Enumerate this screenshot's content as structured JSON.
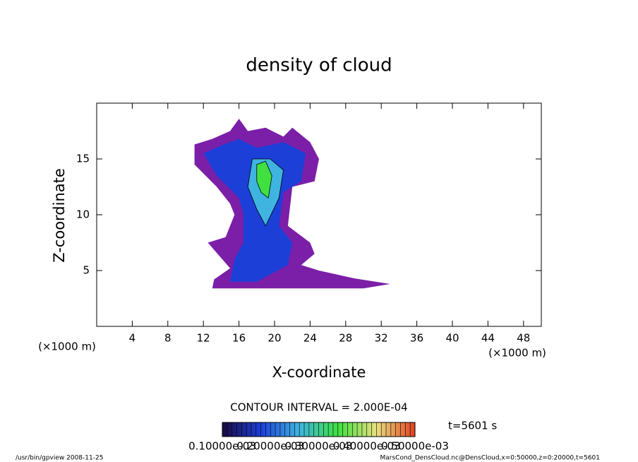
{
  "chart_data": {
    "type": "contour",
    "title": "density of cloud",
    "x_label": "X-coordinate",
    "y_label": "Z-coordinate",
    "x_unit": "(×1000 m)",
    "y_unit": "(×1000 m)",
    "xlim": [
      0,
      50
    ],
    "ylim": [
      0,
      20
    ],
    "xticks": [
      4,
      8,
      12,
      16,
      20,
      24,
      28,
      32,
      36,
      40,
      44,
      48
    ],
    "yticks": [
      5,
      10,
      15
    ],
    "contour_interval": "CONTOUR INTERVAL = 2.000E-04",
    "time_label": "t=5601 s",
    "regions": [
      {
        "level": 0.0001,
        "color": "#7b1fa8",
        "x": [
          11,
          13,
          15,
          16,
          17,
          19,
          21,
          22,
          24,
          25,
          24.5,
          22,
          21.5,
          24,
          24.5,
          23,
          25,
          29,
          33,
          30,
          13,
          13.2,
          15,
          12.5,
          14.5,
          15.5,
          15,
          13.5,
          11
        ],
        "z": [
          16.3,
          16.8,
          17.5,
          18.6,
          17.5,
          17.8,
          17,
          17.8,
          16.5,
          15,
          13,
          12.5,
          9,
          7.5,
          6.5,
          5.5,
          5,
          4.3,
          3.8,
          3.4,
          3.4,
          4.2,
          5.2,
          7.5,
          8,
          10,
          11,
          12.5,
          14.5
        ]
      },
      {
        "level": 0.0002,
        "color": "#1c3fd8",
        "x": [
          12,
          14,
          16,
          18,
          21,
          23.5,
          23,
          21,
          20.5,
          22,
          21.5,
          18,
          15,
          15.5,
          16.5,
          16.5,
          16,
          13.5
        ],
        "z": [
          15.5,
          16.2,
          16.8,
          16,
          16.5,
          15.5,
          13,
          12,
          9,
          7.5,
          5.5,
          4,
          4,
          6,
          7.5,
          10,
          11.5,
          13.5
        ]
      },
      {
        "level": 0.0003,
        "color": "#3fb4e0",
        "x": [
          17.5,
          19.5,
          21,
          20.5,
          19,
          18,
          17
        ],
        "z": [
          15,
          15,
          14,
          11.5,
          9,
          10.5,
          12.5
        ]
      },
      {
        "level": 0.0004,
        "color": "#40e040",
        "x": [
          18,
          19,
          19.7,
          19.3,
          18.5,
          18
        ],
        "z": [
          14.5,
          14.8,
          13.5,
          11.5,
          12,
          13
        ]
      }
    ],
    "colorbar": {
      "lim": [
        0.0001,
        0.0005
      ],
      "colormap": [
        "#1a0a40",
        "#1c3fd8",
        "#3fb4e0",
        "#40e040",
        "#e8e080",
        "#e04020"
      ],
      "ticks": [
        {
          "value": 0.0001,
          "label": "0.10000e-03"
        },
        {
          "value": 0.0002,
          "label": "0.20000e-03"
        },
        {
          "value": 0.0003,
          "label": "0.30000e-03"
        },
        {
          "value": 0.0004,
          "label": "0.40000e-03"
        },
        {
          "value": 0.0005,
          "label": "0.50000e-03"
        }
      ]
    },
    "footer_left": "/usr/bin/gpview  2008-11-25",
    "footer_right": "MarsCond_DensCloud.nc@DensCloud,x=0:50000,z=0:20000,t=5601"
  }
}
